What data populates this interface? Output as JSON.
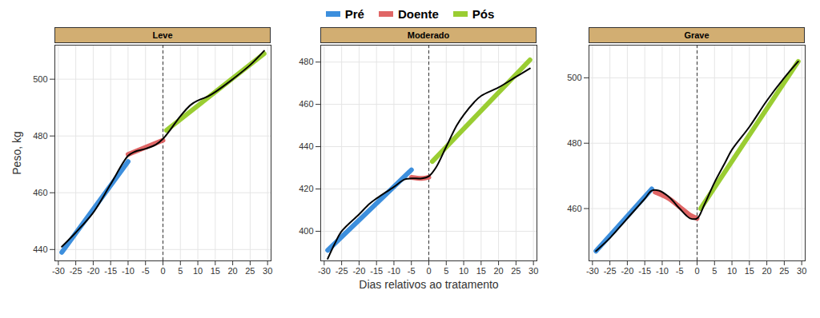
{
  "chart_data": [
    {
      "type": "line",
      "title": "Leve",
      "ylabel": "Peso, kg",
      "legend": "top",
      "grid": true,
      "xlim": [
        -31,
        31
      ],
      "xticks": [
        -30,
        -25,
        -20,
        -15,
        -10,
        -5,
        0,
        5,
        10,
        15,
        20,
        25,
        30
      ],
      "ylim": [
        436,
        512
      ],
      "yticks": [
        440,
        460,
        480,
        500
      ],
      "reference_x": 0,
      "series": [
        {
          "name": "Pré",
          "color": "#3d8fdd",
          "x": [
            -29,
            -10
          ],
          "values": [
            439,
            471
          ]
        },
        {
          "name": "Doente",
          "color": "#e06666",
          "x": [
            -10,
            0
          ],
          "values": [
            473.5,
            478.5
          ]
        },
        {
          "name": "Pós",
          "color": "#9acd32",
          "x": [
            1,
            29
          ],
          "values": [
            482,
            509
          ]
        },
        {
          "name": null,
          "color": "#000000",
          "x": [
            -29,
            -25,
            -20,
            -15,
            -10,
            -8,
            -5,
            -2,
            0,
            2,
            5,
            8,
            10,
            13,
            15,
            20,
            25,
            29
          ],
          "values": [
            441,
            446,
            453,
            463,
            473,
            474.5,
            475.5,
            477,
            479,
            482,
            487,
            491,
            492.5,
            494,
            495.5,
            500,
            505,
            510
          ]
        }
      ]
    },
    {
      "type": "line",
      "title": "Moderado",
      "xlabel": "Dias relativos ao tratamento",
      "grid": true,
      "xlim": [
        -31,
        31
      ],
      "xticks": [
        -30,
        -25,
        -20,
        -15,
        -10,
        -5,
        0,
        5,
        10,
        15,
        20,
        25,
        30
      ],
      "ylim": [
        386,
        488
      ],
      "yticks": [
        400,
        420,
        440,
        460,
        480
      ],
      "reference_x": 0,
      "series": [
        {
          "name": "Pré",
          "color": "#3d8fdd",
          "x": [
            -29,
            -5
          ],
          "values": [
            391,
            429
          ]
        },
        {
          "name": "Doente",
          "color": "#e06666",
          "x": [
            -5,
            -2,
            0
          ],
          "values": [
            425.5,
            425,
            425.5
          ]
        },
        {
          "name": "Pós",
          "color": "#9acd32",
          "x": [
            1,
            29
          ],
          "values": [
            433,
            481
          ]
        },
        {
          "name": null,
          "color": "#000000",
          "x": [
            -29,
            -27,
            -25,
            -20,
            -17,
            -15,
            -10,
            -7,
            -5,
            -2,
            0,
            2,
            5,
            8,
            10,
            13,
            15,
            20,
            25,
            29
          ],
          "values": [
            387,
            394,
            400,
            408,
            413,
            415.5,
            421,
            424.5,
            425,
            425,
            426,
            430,
            440,
            450,
            455,
            461,
            464,
            468,
            473,
            477
          ]
        }
      ]
    },
    {
      "type": "line",
      "title": "Grave",
      "grid": true,
      "xlim": [
        -31,
        31
      ],
      "xticks": [
        -30,
        -25,
        -20,
        -15,
        -10,
        -5,
        0,
        5,
        10,
        15,
        20,
        25,
        30
      ],
      "ylim": [
        444,
        510
      ],
      "yticks": [
        460,
        480,
        500
      ],
      "reference_x": 0,
      "series": [
        {
          "name": "Pré",
          "color": "#3d8fdd",
          "x": [
            -29,
            -13
          ],
          "values": [
            447,
            466
          ]
        },
        {
          "name": "Doente",
          "color": "#e06666",
          "x": [
            -12,
            -8,
            -5,
            -2,
            0
          ],
          "values": [
            465,
            463,
            460.5,
            458,
            457
          ]
        },
        {
          "name": "Pós",
          "color": "#9acd32",
          "x": [
            1,
            29
          ],
          "values": [
            460,
            505
          ]
        },
        {
          "name": null,
          "color": "#000000",
          "x": [
            -29,
            -25,
            -20,
            -15,
            -13,
            -11,
            -8,
            -5,
            -2,
            0,
            2,
            5,
            8,
            10,
            15,
            20,
            25,
            29
          ],
          "values": [
            447,
            451,
            457,
            463,
            465.5,
            465.5,
            463.5,
            460,
            457,
            457,
            461,
            468,
            474,
            478,
            485,
            493,
            500,
            505
          ]
        }
      ]
    }
  ]
}
